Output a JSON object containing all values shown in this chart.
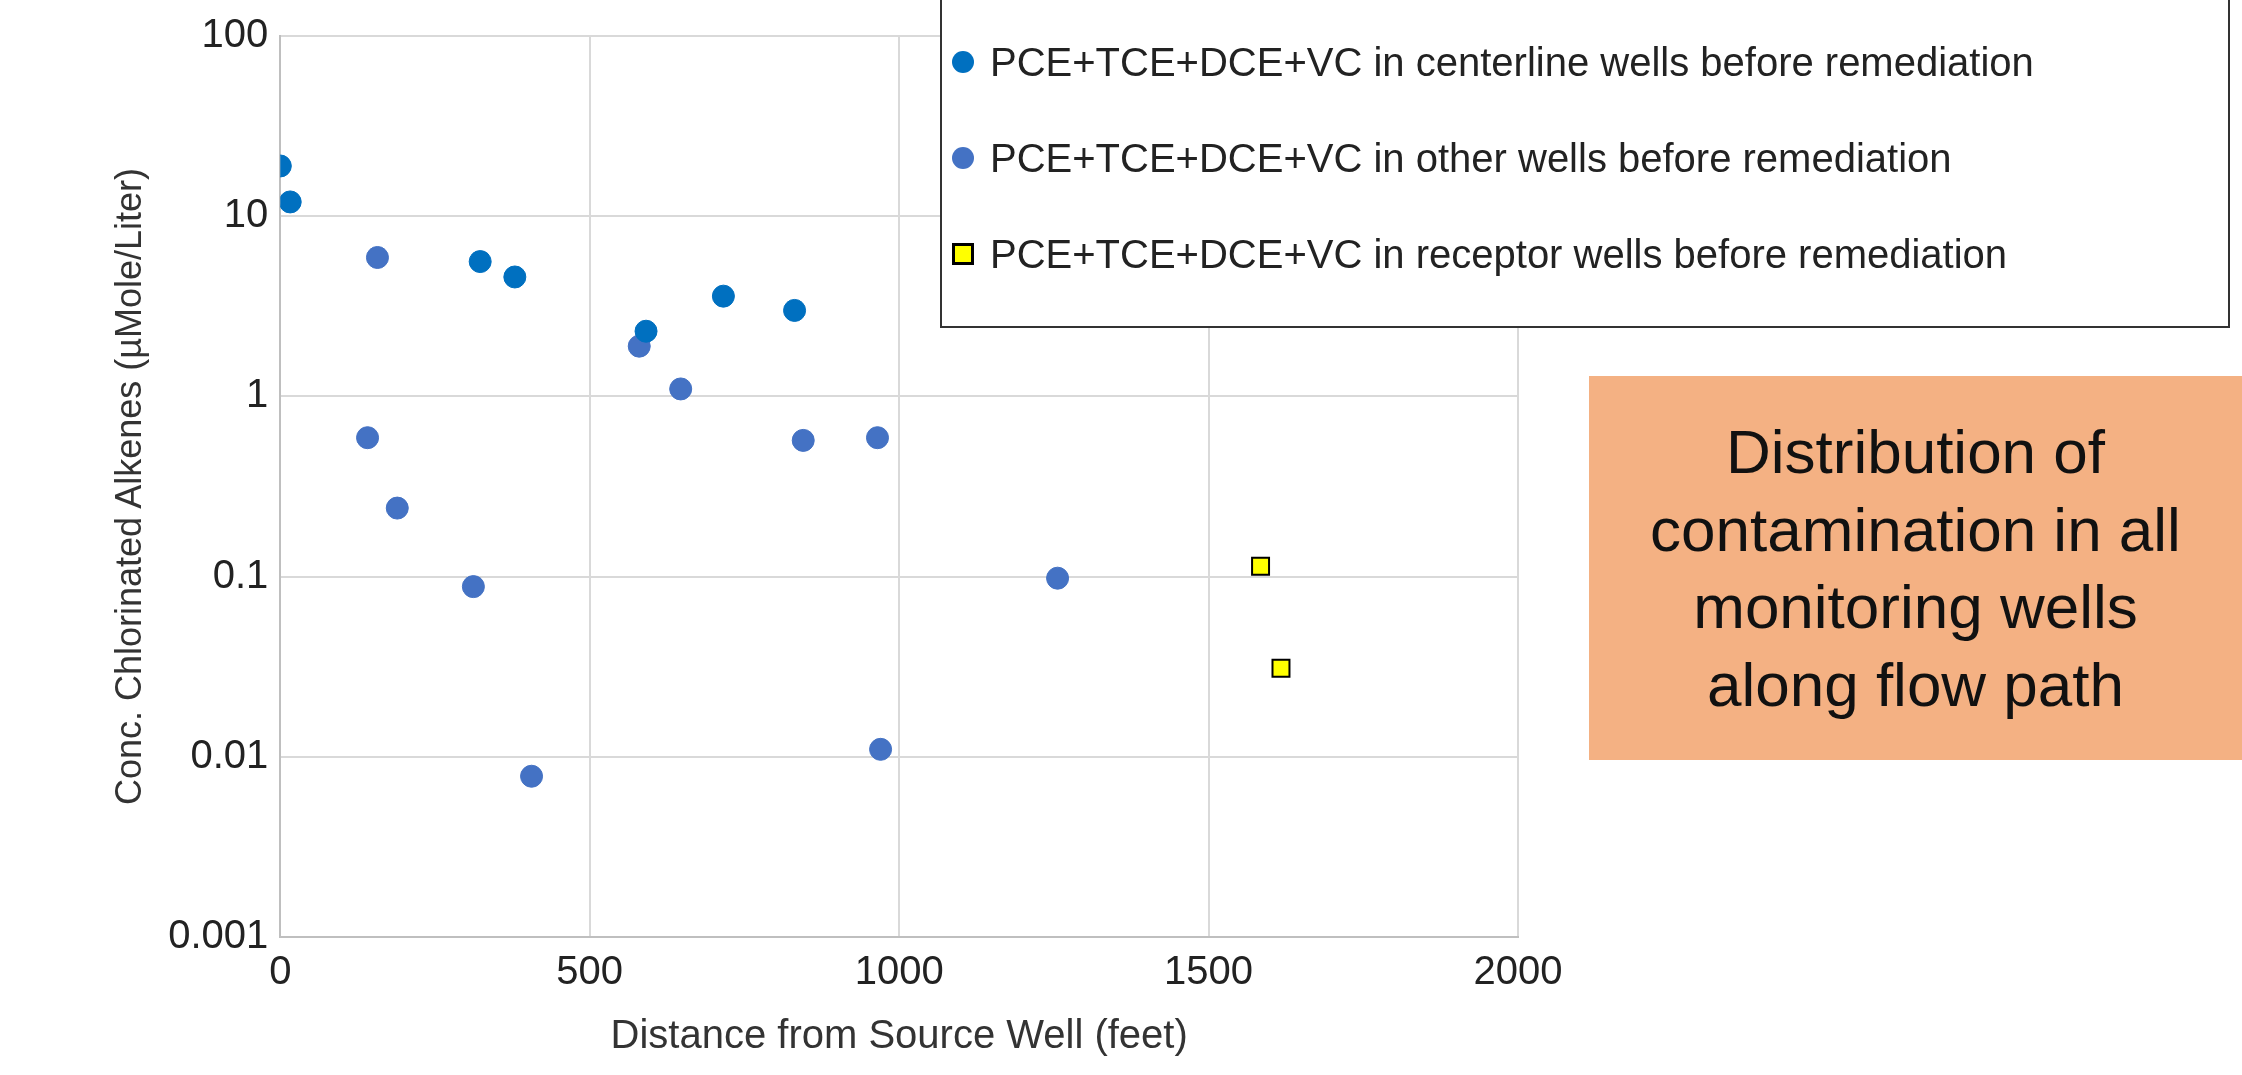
{
  "chart_data": {
    "type": "scatter",
    "xlabel": "Distance from Source Well (feet)",
    "ylabel": "Conc. Chlorinated Alkenes (µMole/Liter)",
    "xlim": [
      0,
      2000
    ],
    "xticks": [
      0,
      500,
      1000,
      1500,
      2000
    ],
    "ylim": [
      0.001,
      100
    ],
    "yticks": [
      0.001,
      0.01,
      0.1,
      1,
      10,
      100
    ],
    "log": "y",
    "grid": true,
    "legend": "top right",
    "annotations": [
      "Distribution of contamination in all monitoring wells along flow path"
    ],
    "series": [
      {
        "name": "PCE+TCE+DCE+VC in centerline wells before remediation",
        "color": "#0070c0",
        "marker": "circle",
        "x": [
          0,
          16,
          323,
          379,
          591,
          716,
          831
        ],
        "values": [
          19,
          12,
          5.6,
          4.6,
          2.3,
          3.6,
          3.0
        ]
      },
      {
        "name": "PCE+TCE+DCE+VC in other wells before remediation",
        "color": "#4472c4",
        "marker": "circle",
        "x": [
          157,
          141,
          189,
          312,
          406,
          580,
          647,
          845,
          965,
          970,
          1256
        ],
        "values": [
          5.9,
          0.59,
          0.24,
          0.088,
          0.0078,
          1.9,
          1.1,
          0.57,
          0.59,
          0.011,
          0.098
        ]
      },
      {
        "name": "PCE+TCE+DCE+VC in receptor wells before remediation",
        "color": "#ffff00",
        "marker": "square",
        "x": [
          1584,
          1617
        ],
        "values": [
          0.114,
          0.031
        ]
      }
    ]
  }
}
